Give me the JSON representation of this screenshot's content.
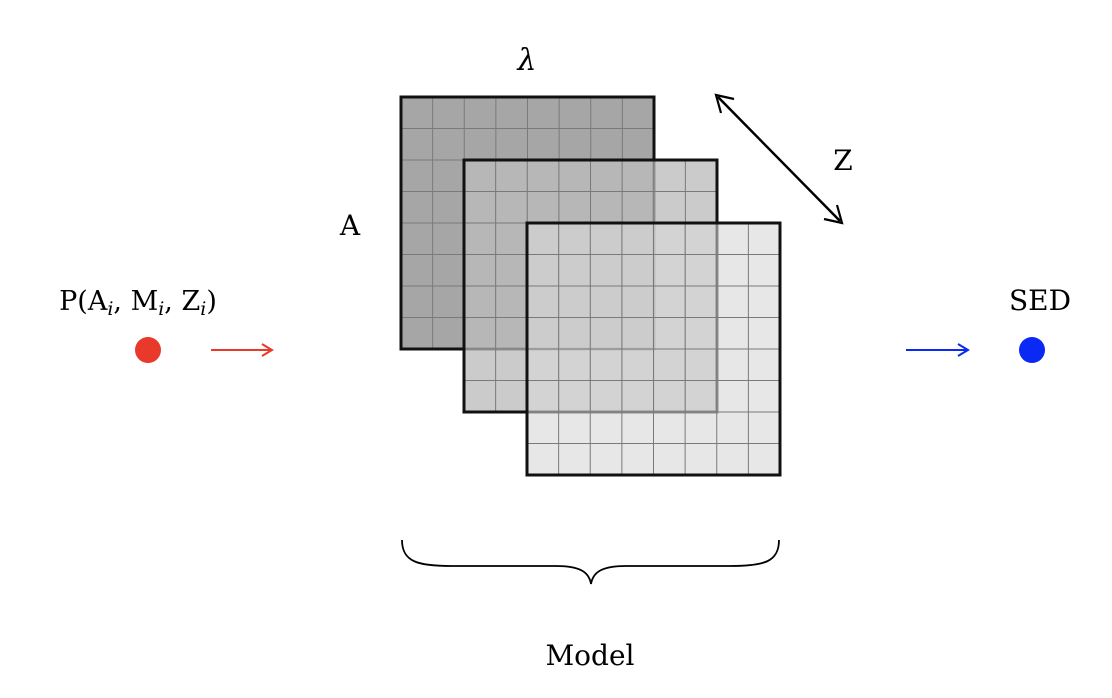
{
  "labels": {
    "lambda": "λ",
    "axis_a": "A",
    "axis_z": "Z",
    "model": "Model",
    "sed": "SED"
  },
  "input": {
    "open": "P(A",
    "sub1": "i",
    "sep1": ", M",
    "sub2": "i",
    "sep2": ", Z",
    "sub3": "i",
    "close": ")"
  },
  "arrows": {
    "in_glyph": "⟶",
    "out_glyph": "⟶"
  },
  "colors": {
    "input_dot": "#e8392b",
    "input_arrow": "#e8392b",
    "output_dot": "#0a29f5",
    "output_arrow": "#0a29f5",
    "grid_back": "#a6a6a6",
    "grid_middle": "#bcbcbc",
    "grid_front": "#d9d9d9",
    "grid_lines": "#7a7a7a",
    "outline": "#111111"
  },
  "grid": {
    "rows": 8,
    "cols": 8
  }
}
